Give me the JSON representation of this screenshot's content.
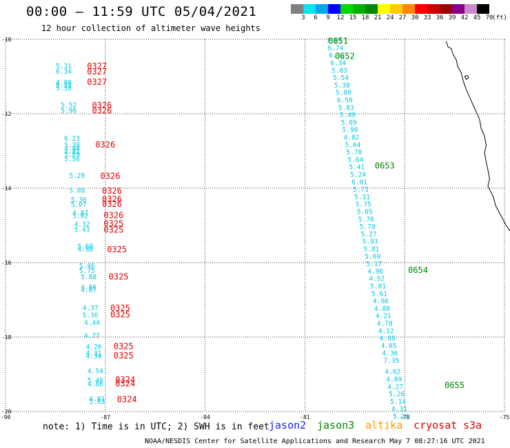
{
  "title": "00:00 – 11:59 UTC 05/04/2021",
  "subtitle": "12 hour collection of altimeter wave heights",
  "footer_note": "note: 1) Time is in UTC; 2) SWH is in feet",
  "credit": "NOAA/NESDIS Center for Satellite Applications and Research    May  7 08:27:16 UTC 2021",
  "colorbar": {
    "unit_label": "(ft)",
    "bins": [
      {
        "label": "3",
        "color": "#808080"
      },
      {
        "label": "6",
        "color": "#00e8e8"
      },
      {
        "label": "9",
        "color": "#00a8f0"
      },
      {
        "label": "12",
        "color": "#0000ff"
      },
      {
        "label": "15",
        "color": "#00d800"
      },
      {
        "label": "18",
        "color": "#00b000"
      },
      {
        "label": "21",
        "color": "#008800"
      },
      {
        "label": "24",
        "color": "#ffff00"
      },
      {
        "label": "27",
        "color": "#ffcc00"
      },
      {
        "label": "30",
        "color": "#ff8800"
      },
      {
        "label": "33",
        "color": "#ff0000"
      },
      {
        "label": "36",
        "color": "#cc0000"
      },
      {
        "label": "39",
        "color": "#990000"
      },
      {
        "label": "42",
        "color": "#880088"
      },
      {
        "label": "45",
        "color": "#cc88cc"
      },
      {
        "label": "70",
        "color": "#000000"
      }
    ]
  },
  "legend": [
    {
      "name": "jason2",
      "color": "#1a1aff"
    },
    {
      "name": "jason3",
      "color": "#008800"
    },
    {
      "name": "altika",
      "color": "#ff9900"
    },
    {
      "name": "cryosat",
      "color": "#e00000"
    },
    {
      "name": "s3a",
      "color": "#cc0000"
    }
  ],
  "map": {
    "lat_labels": [
      "-10",
      "-12",
      "-14",
      "-16",
      "-18",
      "-20"
    ],
    "lon_labels": [
      "-90",
      "-87",
      "-84",
      "-81",
      "-78",
      "-75"
    ],
    "lat_values": [
      -10,
      -12,
      -14,
      -16,
      -18,
      -20
    ],
    "lon_values": [
      -90,
      -87,
      -84,
      -81,
      -78,
      -75
    ],
    "lon_range": [
      -90,
      -75
    ],
    "lat_range": [
      -10,
      -20
    ]
  },
  "tracks": {
    "cryosat_swh_color": "#00c8e0",
    "jason3_time_color": "#008800",
    "cryosat_time_color": "#e00000",
    "jason3_points": [
      {
        "swh": "7.07",
        "lat": -10.03,
        "lon": -80.12
      },
      {
        "swh": "6.74",
        "lat": -10.22,
        "lon": -80.08
      },
      {
        "swh": "6.12",
        "lat": -10.42,
        "lon": -80.04
      },
      {
        "swh": "6.34",
        "lat": -10.62,
        "lon": -80.0
      },
      {
        "swh": "5.83",
        "lat": -10.82,
        "lon": -79.96
      },
      {
        "swh": "5.54",
        "lat": -11.02,
        "lon": -79.92
      },
      {
        "swh": "5.38",
        "lat": -11.22,
        "lon": -79.88
      },
      {
        "swh": "5.89",
        "lat": -11.42,
        "lon": -79.84
      },
      {
        "swh": "6.58",
        "lat": -11.62,
        "lon": -79.8
      },
      {
        "swh": "5.83",
        "lat": -11.82,
        "lon": -79.76
      },
      {
        "swh": "5.49",
        "lat": -12.02,
        "lon": -79.72
      },
      {
        "swh": "5.09",
        "lat": -12.22,
        "lon": -79.68
      },
      {
        "swh": "5.98",
        "lat": -12.42,
        "lon": -79.64
      },
      {
        "swh": "4.82",
        "lat": -12.62,
        "lon": -79.6
      },
      {
        "swh": "5.64",
        "lat": -12.82,
        "lon": -79.56
      },
      {
        "swh": "5.70",
        "lat": -13.02,
        "lon": -79.52
      },
      {
        "swh": "5.64",
        "lat": -13.22,
        "lon": -79.48
      },
      {
        "swh": "5.41",
        "lat": -13.42,
        "lon": -79.44
      },
      {
        "swh": "5.24",
        "lat": -13.62,
        "lon": -79.4
      },
      {
        "swh": "6.01",
        "lat": -13.82,
        "lon": -79.36
      },
      {
        "swh": "5.71",
        "lat": -14.02,
        "lon": -79.32
      },
      {
        "swh": "5.31",
        "lat": -14.22,
        "lon": -79.28
      },
      {
        "swh": "5.75",
        "lat": -14.42,
        "lon": -79.24
      },
      {
        "swh": "5.05",
        "lat": -14.62,
        "lon": -79.2
      },
      {
        "swh": "5.70",
        "lat": -14.82,
        "lon": -79.16
      },
      {
        "swh": "5.70",
        "lat": -15.02,
        "lon": -79.12
      },
      {
        "swh": "5.27",
        "lat": -15.22,
        "lon": -79.08
      },
      {
        "swh": "5.93",
        "lat": -15.42,
        "lon": -79.04
      },
      {
        "swh": "5.81",
        "lat": -15.62,
        "lon": -79.0
      },
      {
        "swh": "5.69",
        "lat": -15.82,
        "lon": -78.96
      },
      {
        "swh": "5.17",
        "lat": -16.02,
        "lon": -78.92
      },
      {
        "swh": "4.96",
        "lat": -16.22,
        "lon": -78.88
      },
      {
        "swh": "4.52",
        "lat": -16.42,
        "lon": -78.84
      },
      {
        "swh": "5.01",
        "lat": -16.62,
        "lon": -78.8
      },
      {
        "swh": "5.61",
        "lat": -16.82,
        "lon": -78.76
      },
      {
        "swh": "4.96",
        "lat": -17.02,
        "lon": -78.72
      },
      {
        "swh": "4.88",
        "lat": -17.22,
        "lon": -78.68
      },
      {
        "swh": "4.21",
        "lat": -17.42,
        "lon": -78.64
      },
      {
        "swh": "4.78",
        "lat": -17.62,
        "lon": -78.6
      },
      {
        "swh": "4.12",
        "lat": -17.82,
        "lon": -78.56
      },
      {
        "swh": "4.68",
        "lat": -18.02,
        "lon": -78.52
      },
      {
        "swh": "4.05",
        "lat": -18.22,
        "lon": -78.48
      },
      {
        "swh": "4.36",
        "lat": -18.42,
        "lon": -78.44
      },
      {
        "swh": "7.35",
        "lat": -18.62,
        "lon": -78.4
      },
      {
        "swh": "4.62",
        "lat": -18.92,
        "lon": -78.36
      },
      {
        "swh": "4.89",
        "lat": -19.12,
        "lon": -78.32
      },
      {
        "swh": "4.27",
        "lat": -19.32,
        "lon": -78.28
      },
      {
        "swh": "5.26",
        "lat": -19.52,
        "lon": -78.24
      },
      {
        "swh": "5.14",
        "lat": -19.72,
        "lon": -78.2
      },
      {
        "swh": "4.31",
        "lat": -19.92,
        "lon": -78.16
      },
      {
        "swh": "5.21",
        "lat": -20.12,
        "lon": -78.12
      }
    ],
    "jason3_times": [
      {
        "text": "0651",
        "lat": -10.05,
        "lon": -80.3
      },
      {
        "text": "0652",
        "lat": -10.45,
        "lon": -80.1
      },
      {
        "text": "0653",
        "lat": -13.4,
        "lon": -78.9
      },
      {
        "text": "0654",
        "lat": -16.2,
        "lon": -77.9
      },
      {
        "text": "0655",
        "lat": -19.3,
        "lon": -76.8
      }
    ],
    "cryosat_points": [
      {
        "swh": "5.31",
        "lat": -10.7,
        "lon": -88.25
      },
      {
        "swh": "6.34",
        "lat": -10.85,
        "lon": -88.25
      },
      {
        "swh": "4.88",
        "lat": -11.15,
        "lon": -88.25
      },
      {
        "swh": "5.21",
        "lat": -11.22,
        "lon": -88.25
      },
      {
        "swh": "5.38",
        "lat": -11.3,
        "lon": -88.25
      },
      {
        "swh": "5.52",
        "lat": -11.75,
        "lon": -88.1
      },
      {
        "swh": "5.98",
        "lat": -11.9,
        "lon": -88.1
      },
      {
        "swh": "6.23",
        "lat": -12.65,
        "lon": -88.0
      },
      {
        "swh": "5.38",
        "lat": -12.82,
        "lon": -88.0
      },
      {
        "swh": "4.98",
        "lat": -12.92,
        "lon": -88.0
      },
      {
        "swh": "4.81",
        "lat": -13.0,
        "lon": -88.0
      },
      {
        "swh": "5.69",
        "lat": -13.08,
        "lon": -88.0
      },
      {
        "swh": "5.56",
        "lat": -13.2,
        "lon": -88.0
      },
      {
        "swh": "5.28",
        "lat": -13.65,
        "lon": -87.85
      },
      {
        "swh": "5.08",
        "lat": -14.05,
        "lon": -87.85
      },
      {
        "swh": "5.36",
        "lat": -14.3,
        "lon": -87.8
      },
      {
        "swh": "5.07",
        "lat": -14.43,
        "lon": -87.8
      },
      {
        "swh": "4.87",
        "lat": -14.65,
        "lon": -87.75
      },
      {
        "swh": "5.02",
        "lat": -14.73,
        "lon": -87.75
      },
      {
        "swh": "4.32",
        "lat": -14.95,
        "lon": -87.7
      },
      {
        "swh": "5.43",
        "lat": -15.1,
        "lon": -87.7
      },
      {
        "swh": "5.68",
        "lat": -15.55,
        "lon": -87.6
      },
      {
        "swh": "4.88",
        "lat": -15.63,
        "lon": -87.6
      },
      {
        "swh": "5.46",
        "lat": -16.07,
        "lon": -87.55
      },
      {
        "swh": "5.75",
        "lat": -16.2,
        "lon": -87.55
      },
      {
        "swh": "5.88",
        "lat": -16.37,
        "lon": -87.5
      },
      {
        "swh": "4.86",
        "lat": -16.65,
        "lon": -87.5
      },
      {
        "swh": "4.07",
        "lat": -16.72,
        "lon": -87.5
      },
      {
        "swh": "4.37",
        "lat": -17.2,
        "lon": -87.45
      },
      {
        "swh": "5.36",
        "lat": -17.4,
        "lon": -87.45
      },
      {
        "swh": "4.44",
        "lat": -17.6,
        "lon": -87.4
      },
      {
        "swh": "4.77",
        "lat": -17.95,
        "lon": -87.4
      },
      {
        "swh": "4.20",
        "lat": -18.25,
        "lon": -87.35
      },
      {
        "swh": "4.31",
        "lat": -18.42,
        "lon": -87.35
      },
      {
        "swh": "4.34",
        "lat": -18.5,
        "lon": -87.35
      },
      {
        "swh": "4.54",
        "lat": -18.9,
        "lon": -87.3
      },
      {
        "swh": "5.48",
        "lat": -19.15,
        "lon": -87.3
      },
      {
        "swh": "4.86",
        "lat": -19.25,
        "lon": -87.3
      },
      {
        "swh": "4.81",
        "lat": -19.65,
        "lon": -87.25
      },
      {
        "swh": "5.03",
        "lat": -19.72,
        "lon": -87.25
      }
    ],
    "cryosat_times": [
      {
        "text": "0327",
        "lat": -10.72,
        "lon": -87.55
      },
      {
        "text": "0327",
        "lat": -10.87,
        "lon": -87.55
      },
      {
        "text": "0327",
        "lat": -11.15,
        "lon": -87.55
      },
      {
        "text": "0326",
        "lat": -11.78,
        "lon": -87.4
      },
      {
        "text": "0326",
        "lat": -11.92,
        "lon": -87.4
      },
      {
        "text": "0326",
        "lat": -12.83,
        "lon": -87.3
      },
      {
        "text": "0326",
        "lat": -13.68,
        "lon": -87.15
      },
      {
        "text": "0326",
        "lat": -14.07,
        "lon": -87.1
      },
      {
        "text": "0326",
        "lat": -14.3,
        "lon": -87.1
      },
      {
        "text": "0326",
        "lat": -14.43,
        "lon": -87.1
      },
      {
        "text": "0326",
        "lat": -14.73,
        "lon": -87.05
      },
      {
        "text": "0325",
        "lat": -14.95,
        "lon": -87.05
      },
      {
        "text": "0325",
        "lat": -15.12,
        "lon": -87.05
      },
      {
        "text": "0325",
        "lat": -15.65,
        "lon": -86.95
      },
      {
        "text": "0325",
        "lat": -16.38,
        "lon": -86.9
      },
      {
        "text": "0325",
        "lat": -17.22,
        "lon": -86.85
      },
      {
        "text": "0325",
        "lat": -17.4,
        "lon": -86.85
      },
      {
        "text": "0325",
        "lat": -18.25,
        "lon": -86.75
      },
      {
        "text": "0325",
        "lat": -18.5,
        "lon": -86.75
      },
      {
        "text": "0324",
        "lat": -19.15,
        "lon": -86.7
      },
      {
        "text": "0324",
        "lat": -19.25,
        "lon": -86.7
      },
      {
        "text": "0324",
        "lat": -19.68,
        "lon": -86.65
      }
    ]
  }
}
